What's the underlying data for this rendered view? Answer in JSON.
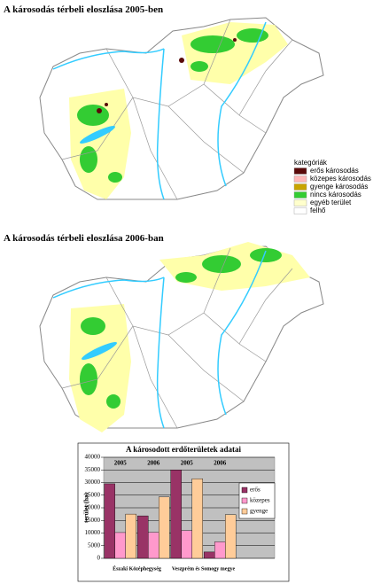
{
  "maps": [
    {
      "title": "A károsodás térbeli eloszlása 2005-ben"
    },
    {
      "title": "A károsodás térbeli eloszlása 2006-ban"
    }
  ],
  "map_legend": {
    "title": "kategóriák",
    "items": [
      {
        "label": "erős károsodás",
        "color": "#5a0a0a"
      },
      {
        "label": "közepes károsodás",
        "color": "#ffb8b8"
      },
      {
        "label": "gyenge károsodás",
        "color": "#c8a400"
      },
      {
        "label": "nincs károsodás",
        "color": "#33cc33"
      },
      {
        "label": "egyéb terület",
        "color": "#ffffcc"
      },
      {
        "label": "felhő",
        "color": "#ffffff"
      }
    ]
  },
  "chart_data": {
    "type": "bar",
    "title": "A károsodott erdőterületek adatai",
    "y_label": "terület (ha)",
    "categories": [
      "2005",
      "2006",
      "2005",
      "2006"
    ],
    "groups": [
      "Északi Középhegység",
      "Veszprém és Somogy megye"
    ],
    "series": [
      {
        "name": "erős",
        "color": "#993366",
        "values": [
          29500,
          16800,
          35000,
          2500
        ]
      },
      {
        "name": "közepes",
        "color": "#ff99cc",
        "values": [
          10200,
          10300,
          11000,
          6500
        ]
      },
      {
        "name": "gyenge",
        "color": "#ffcc99",
        "values": [
          17500,
          24300,
          31500,
          17300
        ]
      }
    ],
    "ylim": [
      0,
      40000
    ],
    "yticks": [
      0,
      5000,
      10000,
      15000,
      20000,
      25000,
      30000,
      35000,
      40000
    ],
    "grid": true
  }
}
